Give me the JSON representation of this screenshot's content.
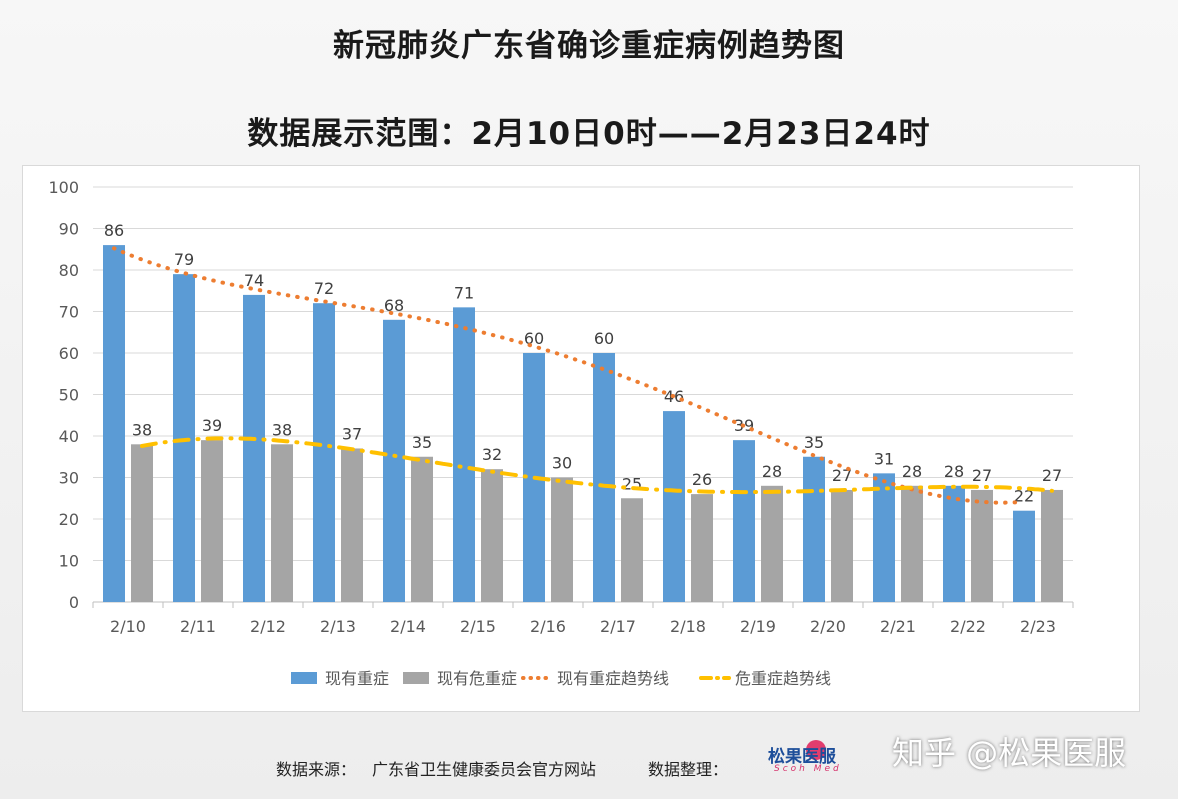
{
  "header": {
    "title": "新冠肺炎广东省确诊重症病例趋势图",
    "subtitle": "数据展示范围：2月10日0时——2月23日24时"
  },
  "chart_data": {
    "type": "bar",
    "categories": [
      "2/10",
      "2/11",
      "2/12",
      "2/13",
      "2/14",
      "2/15",
      "2/16",
      "2/17",
      "2/18",
      "2/19",
      "2/20",
      "2/21",
      "2/22",
      "2/23"
    ],
    "series": [
      {
        "name": "现有重症",
        "type": "bar",
        "color": "#5b9bd5",
        "values": [
          86,
          79,
          74,
          72,
          68,
          71,
          60,
          60,
          46,
          39,
          35,
          31,
          28,
          22
        ]
      },
      {
        "name": "现有危重症",
        "type": "bar",
        "color": "#a5a5a5",
        "values": [
          38,
          39,
          38,
          37,
          35,
          32,
          30,
          25,
          26,
          28,
          27,
          28,
          27,
          27
        ]
      },
      {
        "name": "现有重症趋势线",
        "type": "line",
        "style": "dotted",
        "color": "#ed7d31"
      },
      {
        "name": "危重症趋势线",
        "type": "line",
        "style": "dash-dot",
        "color": "#ffc000"
      }
    ],
    "xlabel": "",
    "ylabel": "",
    "ylim": [
      0,
      100
    ],
    "yticks": [
      0,
      10,
      20,
      30,
      40,
      50,
      60,
      70,
      80,
      90,
      100
    ],
    "grid": true,
    "legend": "bottom"
  },
  "footer": {
    "source_label": "数据来源：",
    "source_value": "广东省卫生健康委员会官方网站",
    "organizer_label": "数据整理：",
    "logo_text": "松果医服",
    "logo_sub": "Scoh Med",
    "watermark": "知乎 @松果医服"
  }
}
